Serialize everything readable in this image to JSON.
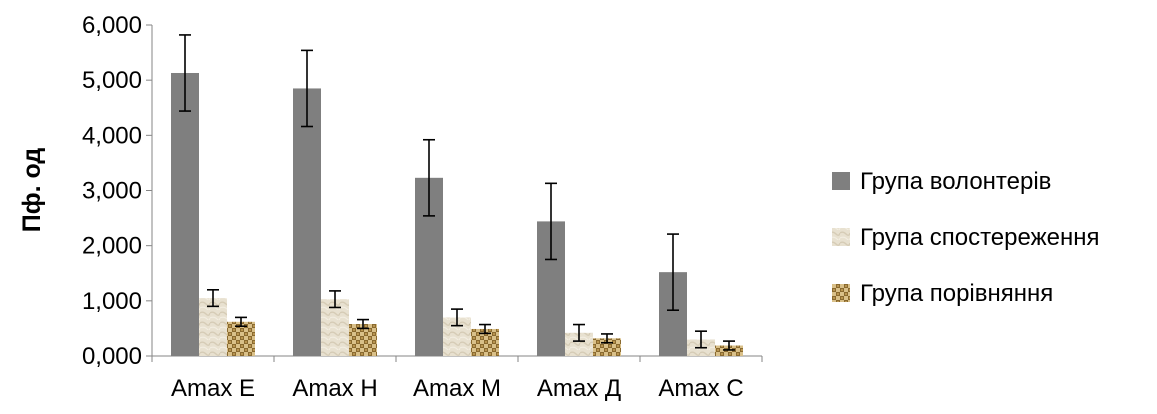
{
  "chart_data": {
    "type": "bar",
    "title": "",
    "xlabel": "",
    "ylabel": "Пф. од",
    "categories": [
      "Amax E",
      "Amax H",
      "Amax M",
      "Amax Д",
      "Amax C"
    ],
    "ylim": [
      0,
      6
    ],
    "yticks": [
      "0,000",
      "1,000",
      "2,000",
      "3,000",
      "4,000",
      "5,000",
      "6,000"
    ],
    "grid": false,
    "legend_position": "right",
    "series": [
      {
        "name": "Група волонтерів",
        "values": [
          5.13,
          4.85,
          3.23,
          2.44,
          1.52
        ],
        "error": [
          0.69,
          0.69,
          0.69,
          0.69,
          0.69
        ],
        "color": "#7f7f7f",
        "pattern": "solid"
      },
      {
        "name": "Група спостереження",
        "values": [
          1.05,
          1.03,
          0.7,
          0.42,
          0.3
        ],
        "error": [
          0.15,
          0.15,
          0.15,
          0.15,
          0.15
        ],
        "color": "#e3dccb",
        "pattern": "marble"
      },
      {
        "name": "Група порівняння",
        "values": [
          0.62,
          0.58,
          0.49,
          0.32,
          0.19
        ],
        "error": [
          0.08,
          0.08,
          0.08,
          0.08,
          0.08
        ],
        "color": "#c2a66d",
        "pattern": "woven"
      }
    ]
  }
}
